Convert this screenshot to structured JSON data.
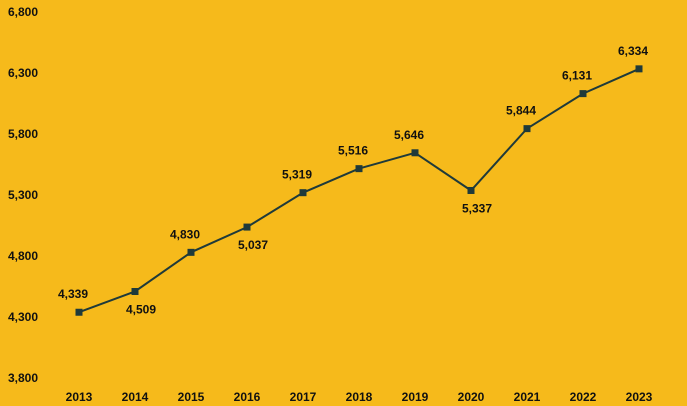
{
  "chart_data": {
    "type": "line",
    "x": [
      "2013",
      "2014",
      "2015",
      "2016",
      "2017",
      "2018",
      "2019",
      "2020",
      "2021",
      "2022",
      "2023"
    ],
    "values": [
      4339,
      4509,
      4830,
      5037,
      5319,
      5516,
      5646,
      5337,
      5844,
      6131,
      6334
    ],
    "value_labels": [
      "4,339",
      "4,509",
      "4,830",
      "5,037",
      "5,319",
      "5,516",
      "5,646",
      "5,337",
      "5,844",
      "6,131",
      "6,334"
    ],
    "y_ticks": [
      3800,
      4300,
      4800,
      5300,
      5800,
      6300,
      6800
    ],
    "y_tick_labels": [
      "3,800",
      "4,300",
      "4,800",
      "5,300",
      "5,800",
      "6,300",
      "6,800"
    ],
    "ylim": [
      3800,
      6800
    ],
    "title": "",
    "xlabel": "",
    "ylabel": "",
    "grid": false,
    "legend": "none",
    "colors": {
      "background": "#F6BA1B",
      "line": "#1F3A3A",
      "marker": "#1F3A3A",
      "text": "#111111"
    }
  }
}
